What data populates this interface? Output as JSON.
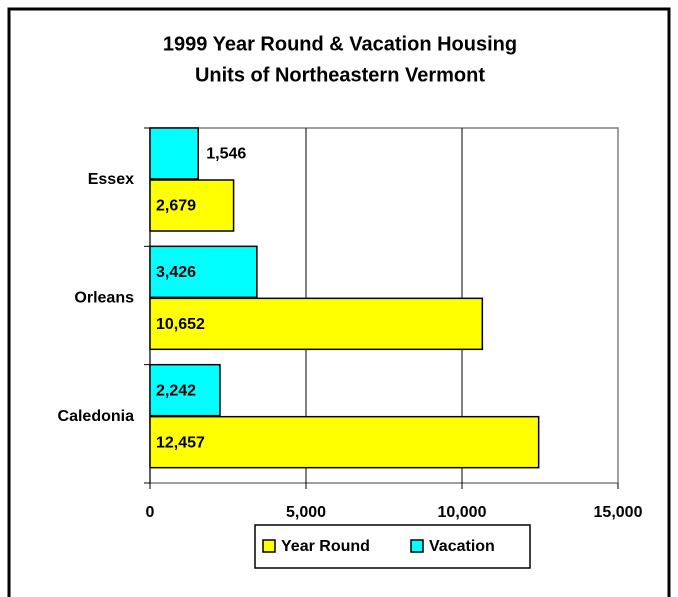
{
  "chart_data": {
    "type": "bar",
    "orientation": "horizontal",
    "title": [
      "1999 Year Round & Vacation Housing",
      "Units of Northeastern Vermont"
    ],
    "categories": [
      "Essex",
      "Orleans",
      "Caledonia"
    ],
    "series": [
      {
        "name": "Year Round",
        "color": "#ffff00",
        "values": [
          2679,
          10652,
          12457
        ],
        "value_labels": [
          "2,679",
          "10,652",
          "12,457"
        ]
      },
      {
        "name": "Vacation",
        "color": "#00ffff",
        "values": [
          1546,
          3426,
          2242
        ],
        "value_labels": [
          "1,546",
          "3,426",
          "2,242"
        ]
      }
    ],
    "xlim": [
      0,
      15000
    ],
    "xticks": [
      0,
      {
        "value": 5000,
        "label": "5,000"
      },
      {
        "value": 10000,
        "label": "10,000"
      },
      {
        "value": 15000,
        "label": "15,000"
      }
    ],
    "grid": true,
    "legend": "bottom"
  }
}
